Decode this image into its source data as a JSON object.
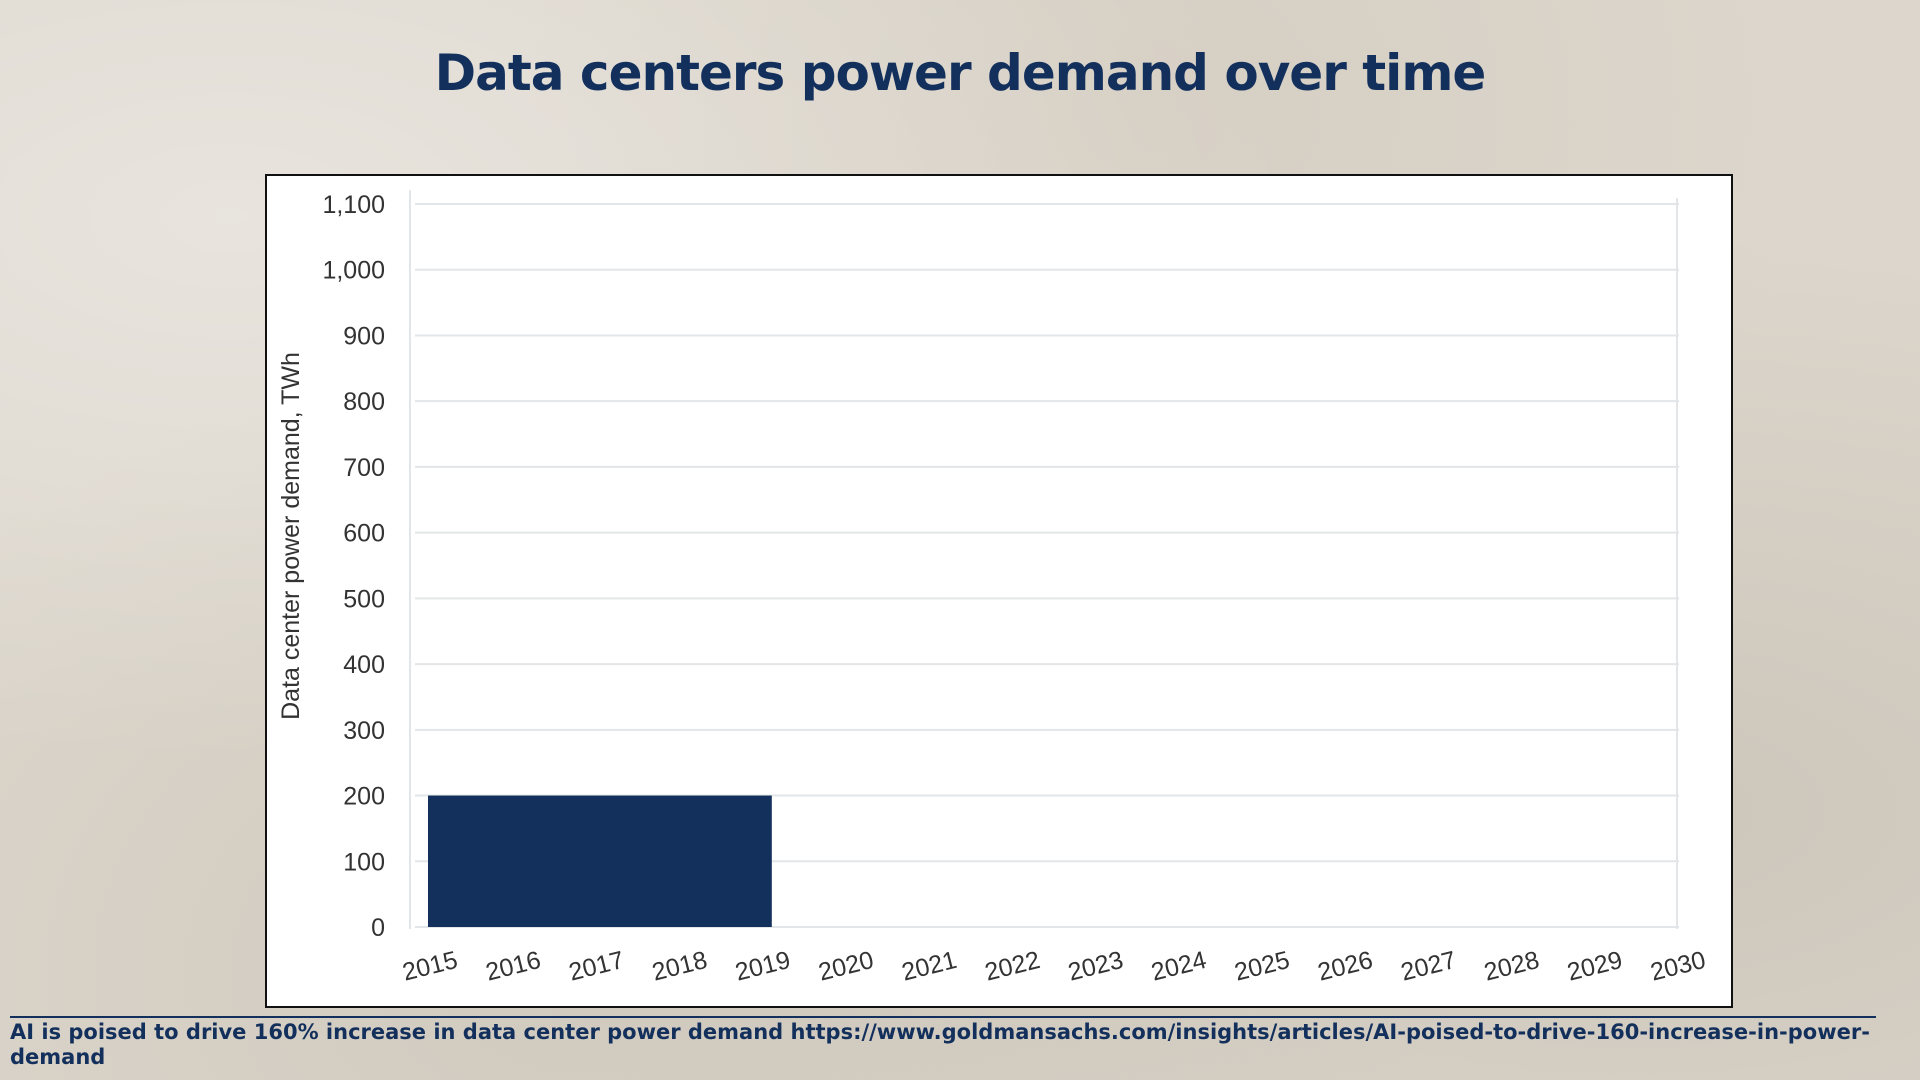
{
  "slide": {
    "title": "Data centers power demand over time",
    "source_note": "AI is poised to drive 160% increase in data center power demand https://www.goldmansachs.com/insights/articles/AI-poised-to-drive-160-increase-in-power-demand"
  },
  "colors": {
    "bar": "#13305c",
    "grid": "#e3e6e8",
    "title": "#13305c"
  },
  "chart_data": {
    "type": "bar",
    "title": "",
    "ylabel": "Data center power demand, TWh",
    "xlabel": "",
    "ylim": [
      0,
      1100
    ],
    "y_ticks": [
      "0",
      "100",
      "200",
      "300",
      "400",
      "500",
      "600",
      "700",
      "800",
      "900",
      "1,000",
      "1,100"
    ],
    "x_ticks": [
      "2015",
      "2016",
      "2017",
      "2018",
      "2019",
      "2020",
      "2021",
      "2022",
      "2023",
      "2024",
      "2025",
      "2026",
      "2027",
      "2028",
      "2029",
      "2030"
    ],
    "bars": [
      {
        "x_start": "2015",
        "x_end": "2019",
        "value": 200
      }
    ],
    "grid": true,
    "legend": "none"
  }
}
